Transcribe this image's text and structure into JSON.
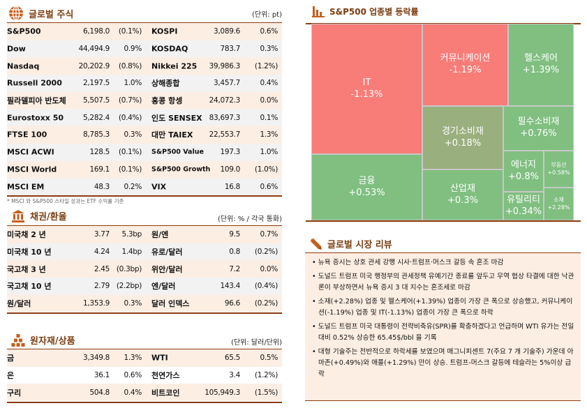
{
  "global_equity": {
    "title": "글로벌 주식",
    "unit": "(단위: pt)",
    "rows": [
      [
        "S&P500",
        "6,198.0",
        "(0.1%)",
        "KOSPI",
        "3,089.6",
        "0.6%"
      ],
      [
        "Dow",
        "44,494.9",
        "0.9%",
        "KOSDAQ",
        "783.7",
        "0.3%"
      ],
      [
        "Nasdaq",
        "20,202.9",
        "(0.8%)",
        "Nikkei 225",
        "39,986.3",
        "(1.2%)"
      ],
      [
        "Russell 2000",
        "2,197.5",
        "1.0%",
        "상해종합",
        "3,457.7",
        "0.4%"
      ],
      [
        "필라델피아 반도체",
        "5,507.5",
        "(0.7%)",
        "홍콩 항셍",
        "24,072.3",
        "0.0%"
      ],
      [
        "Eurostoxx 50",
        "5,282.4",
        "(0.4%)",
        "인도 SENSEX",
        "83,697.3",
        "0.1%"
      ],
      [
        "FTSE 100",
        "8,785.3",
        "0.3%",
        "대만 TAIEX",
        "22,553.7",
        "1.3%"
      ],
      [
        "MSCI ACWI",
        "128.5",
        "(0.1%)",
        "S&P500 Value",
        "197.3",
        "1.0%"
      ],
      [
        "MSCI World",
        "169.1",
        "(0.1%)",
        "S&P500 Growth",
        "109.0",
        "(1.0%)"
      ],
      [
        "MSCI EM",
        "48.3",
        "0.2%",
        "VIX",
        "16.8",
        "0.6%"
      ]
    ],
    "note": "* MSCI 와 S&P500 스타일 성과는 ETF 수익률 기준"
  },
  "bonds_fx": {
    "title": "채권/환율",
    "unit": "(단위: % / 각국 통화)",
    "rows": [
      [
        "미국채 2 년",
        "3.77",
        "5.3bp",
        "원/엔",
        "9.5",
        "0.7%"
      ],
      [
        "미국채 10 년",
        "4.24",
        "1.4bp",
        "유로/달러",
        "0.8",
        "(0.2%)"
      ],
      [
        "국고채 3 년",
        "2.45",
        "(0.3bp)",
        "위안/달러",
        "7.2",
        "0.0%"
      ],
      [
        "국고채 10 년",
        "2.79",
        "(2.2bp)",
        "엔/달러",
        "143.4",
        "(0.4%)"
      ],
      [
        "원/달러",
        "1,353.9",
        "0.3%",
        "달러 인덱스",
        "96.6",
        "(0.2%)"
      ]
    ]
  },
  "commodities": {
    "title": "원자재/상품",
    "unit": "(단위: 달러/단위)",
    "rows": [
      [
        "금",
        "3,349.8",
        "1.3%",
        "WTI",
        "65.5",
        "0.5%"
      ],
      [
        "은",
        "36.1",
        "0.6%",
        "천연가스",
        "3.4",
        "(1.2%)"
      ],
      [
        "구리",
        "504.8",
        "0.4%",
        "비트코인",
        "105,949.3",
        "(1.5%)"
      ]
    ]
  },
  "sector_map": {
    "title": "S&P500 업종별 등락률",
    "colors": {
      "down": "#f87c78",
      "up": "#80bf80",
      "flat": "#9aaf7e"
    },
    "cells": [
      {
        "label": "IT",
        "value": "-1.13%"
      },
      {
        "label": "커뮤니케이션",
        "value": "-1.19%"
      },
      {
        "label": "헬스케어",
        "value": "+1.39%"
      },
      {
        "label": "경기소비재",
        "value": "+0.18%"
      },
      {
        "label": "필수소비재",
        "value": "+0.76%"
      },
      {
        "label": "금융",
        "value": "+0.53%"
      },
      {
        "label": "산업재",
        "value": "+0.3%"
      },
      {
        "label": "에너지",
        "value": "+0.8%"
      },
      {
        "label": "부동산",
        "value": "+0.58%"
      },
      {
        "label": "유틸리티",
        "value": "+0.34%"
      },
      {
        "label": "소재",
        "value": "+2.28%"
      }
    ]
  },
  "review": {
    "title": "글로벌 시장 리뷰",
    "items": [
      "뉴욕 증시는 상호 관세 강행 시사·트럼프·머스크 갈등 속 혼조 마감",
      "도널드 트럼프 미국 행정부의 관세정책 유예기간 종료를 앞두고 무역 협상 타결에 대한 낙관론이 부상하면서 뉴욕 증시 3 대 지수는 혼조세로 마감",
      "소재(+2.28%) 업종 및 헬스케어(+1.39%) 업종이 가장 큰 폭으로 상승했고, 커뮤니케이션(-1.19%) 업종 및 IT(-1.13%) 업종이 가장 큰 폭으로 하락",
      "도널드 트럼프 미국 대통령이 전략비축유(SPR)를 확충하겠다고 언급하며 WTI 유가는 전일대비 0.52% 상승한 65.45$/bbl 을 기록",
      "대형 기술주는 전반적으로 하락세를 보였으며 매그니피센트 7(주요 7 개 기술주) 가운데 아마존(+0.49%)와 애플(+1.29%) 만이 상승. 트럼프-머스크 갈등에 테슬라는 5%이상 급락"
    ]
  }
}
